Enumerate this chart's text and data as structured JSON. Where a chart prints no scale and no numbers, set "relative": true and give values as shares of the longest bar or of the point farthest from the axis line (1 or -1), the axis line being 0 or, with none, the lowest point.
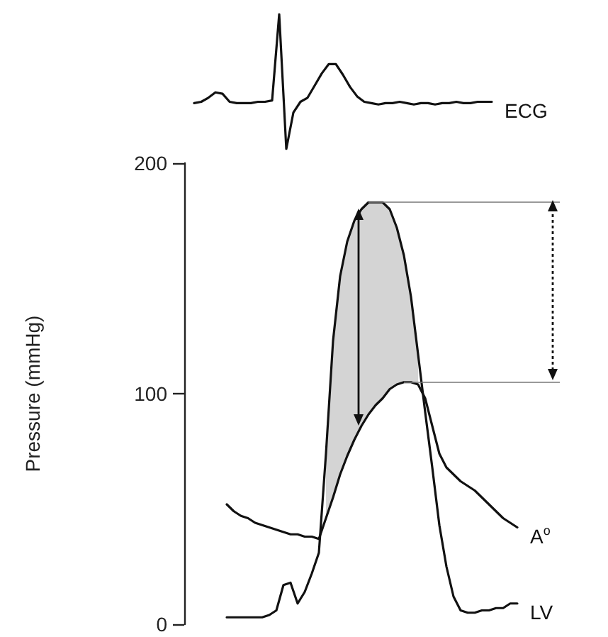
{
  "chart_data": [
    {
      "type": "line",
      "relative": true,
      "categories": [
        null,
        null,
        null,
        null,
        null,
        null,
        null,
        null,
        null,
        null,
        null,
        null,
        null,
        null,
        null,
        null,
        null,
        null,
        null,
        null,
        null,
        null,
        null,
        null,
        null,
        null,
        null,
        null,
        null,
        null,
        null,
        null,
        null,
        null,
        null,
        null,
        null,
        null,
        null,
        null,
        null,
        null,
        null
      ],
      "series": [
        {
          "name": "ECG",
          "color": "#111111",
          "values": [
            0.34,
            0.35,
            0.38,
            0.42,
            0.41,
            0.35,
            0.34,
            0.34,
            0.34,
            0.35,
            0.35,
            0.36,
            1,
            0,
            0.27,
            0.35,
            0.38,
            0.47,
            0.56,
            0.63,
            0.63,
            0.55,
            0.46,
            0.39,
            0.35,
            0.34,
            0.33,
            0.34,
            0.34,
            0.35,
            0.34,
            0.33,
            0.34,
            0.34,
            0.33,
            0.34,
            0.34,
            0.35,
            0.34,
            0.34,
            0.35,
            0.35,
            0.35
          ]
        }
      ],
      "legend": false,
      "grid": false,
      "marker": "none",
      "line_style": "solid",
      "tick_labels": false
    },
    {
      "type": "line",
      "ylabel": "Pressure (mmHg)",
      "ylim": [
        0,
        200
      ],
      "yticks": [
        0,
        100,
        200
      ],
      "tick_labels": "y",
      "legend": false,
      "grid": false,
      "marker": "none",
      "line_style": "solid",
      "categories": [
        null,
        null,
        null,
        null,
        null,
        null,
        null,
        null,
        null,
        null,
        null,
        null,
        null,
        null,
        null,
        null,
        null,
        null,
        null,
        null,
        null,
        null,
        null,
        null,
        null,
        null,
        null,
        null,
        null,
        null,
        null,
        null,
        null,
        null,
        null,
        null,
        null,
        null,
        null,
        null,
        null,
        null,
        null,
        null,
        null,
        null,
        null,
        null,
        null,
        null,
        null,
        null,
        null,
        null
      ],
      "series": [
        {
          "name": "A$^{o}$",
          "color": "#111111",
          "values": [
            null,
            null,
            null,
            null,
            null,
            null,
            52,
            49,
            47,
            46,
            44,
            43,
            42,
            41,
            40,
            39,
            39,
            38,
            38,
            37,
            46,
            55,
            65,
            73,
            80,
            86,
            91,
            95,
            98,
            102,
            104,
            105,
            105,
            104,
            98,
            86,
            74,
            68,
            65,
            62,
            60,
            58,
            55,
            52,
            49,
            46,
            44,
            42,
            null,
            null,
            null,
            null,
            null,
            null
          ]
        },
        {
          "name": "LV",
          "color": "#111111",
          "values": [
            null,
            null,
            null,
            null,
            null,
            null,
            3,
            3,
            3,
            3,
            3,
            3,
            4,
            6,
            17,
            18,
            9,
            14,
            22,
            31,
            74,
            123,
            151,
            166,
            175,
            180,
            183,
            183,
            183,
            180,
            172,
            160,
            142,
            117,
            92,
            68,
            43,
            25,
            12,
            6,
            5,
            5,
            6,
            6,
            7,
            7,
            9,
            9,
            null,
            null,
            null,
            null,
            null,
            null
          ],
          "lower": [
            null,
            null,
            null,
            null,
            null,
            null,
            null,
            null,
            null,
            null,
            null,
            null,
            null,
            null,
            null,
            null,
            null,
            null,
            null,
            null,
            46,
            55,
            65,
            73,
            80,
            86,
            91,
            95,
            98,
            102,
            104,
            105,
            105,
            104,
            null,
            null,
            null,
            null,
            null,
            null,
            null,
            null,
            null,
            null,
            null,
            null,
            null,
            null,
            null,
            null,
            null,
            null,
            null,
            null
          ],
          "upper": [
            null,
            null,
            null,
            null,
            null,
            null,
            null,
            null,
            null,
            null,
            null,
            null,
            null,
            null,
            null,
            null,
            null,
            null,
            null,
            null,
            74,
            123,
            151,
            166,
            175,
            180,
            183,
            183,
            183,
            180,
            172,
            160,
            142,
            117,
            null,
            null,
            null,
            null,
            null,
            null,
            null,
            null,
            null,
            null,
            null,
            null,
            null,
            null,
            null,
            null,
            null,
            null,
            null,
            null
          ]
        }
      ],
      "ref_lines": [
        {
          "axis": "y",
          "value": 183,
          "color": "#777777"
        },
        {
          "axis": "y",
          "value": 105,
          "color": "#777777"
        }
      ]
    }
  ]
}
